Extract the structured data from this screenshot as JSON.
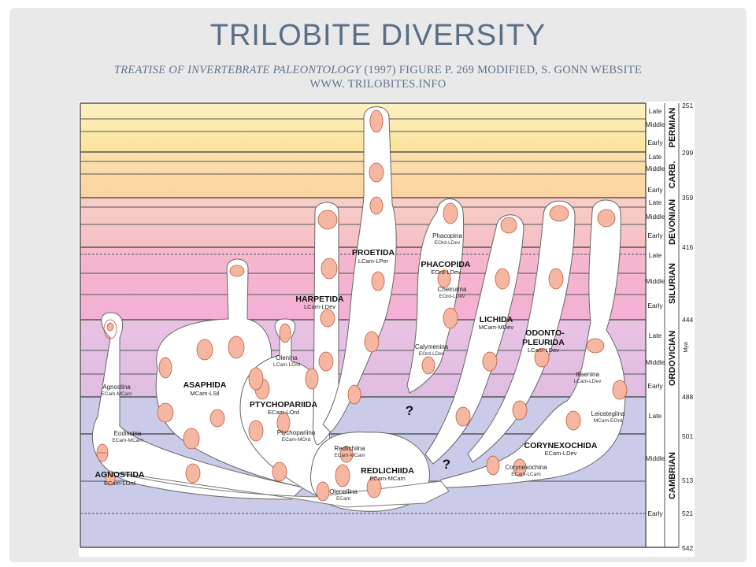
{
  "slide": {
    "title": "TRILOBITE DIVERSITY",
    "subtitle_italic": "TREATISE OF INVERTEBRATE PALEONTOLOGY",
    "subtitle_rest": " (1997) FIGURE P. 269 MODIFIED,  S. GONN WEBSITE",
    "subtitle_line2": "WWW. TRILOBITES.INFO"
  },
  "periods": [
    {
      "name": "PERMIAN",
      "color": "#fbe7a4"
    },
    {
      "name": "CARB.",
      "color": "#fbd9a2"
    },
    {
      "name": "DEVONIAN",
      "color": "#f6c6c4"
    },
    {
      "name": "SILURIAN",
      "color": "#f4b7d4"
    },
    {
      "name": "ORDOVICIAN",
      "color": "#e6bde1"
    },
    {
      "name": "CAMBRIAN",
      "color": "#c9ccea"
    }
  ],
  "epochs": {
    "permian": [
      "Late",
      "Middle",
      "Early"
    ],
    "carb": [
      "Late",
      "Middle",
      "Early"
    ],
    "devonian": [
      "Late",
      "Middle",
      "Early"
    ],
    "silurian": [
      "Late",
      "Middle",
      "Early"
    ],
    "ordovician": [
      "Late",
      "Middle",
      "Early"
    ],
    "cambrian": [
      "Late",
      "Middle",
      "Early"
    ]
  },
  "ages": [
    "251",
    "299",
    "359",
    "416",
    "444",
    "488",
    "501",
    "513",
    "521",
    "542"
  ],
  "mya_label": "Mya",
  "orders": [
    {
      "name": "AGNOSTIDA",
      "range": "ECam-LOrd"
    },
    {
      "name": "ASAPHIDA",
      "range": "MCam-LSil"
    },
    {
      "name": "PTYCHOPARIIDA",
      "range": "ECam-LOrd"
    },
    {
      "name": "REDLICHIIDA",
      "range": "ECam-MCam"
    },
    {
      "name": "HARPETIDA",
      "range": "LCam-LDev"
    },
    {
      "name": "PROETIDA",
      "range": "LCam-LPer"
    },
    {
      "name": "PHACOPIDA",
      "range": "EOrd-LDev"
    },
    {
      "name": "LICHIDA",
      "range": "MCam-MDev"
    },
    {
      "name": "ODONTO-",
      "name2": "PLEURIDA",
      "range": "LCam-LDev"
    },
    {
      "name": "CORYNEXOCHIDA",
      "range": "ECam-LDev"
    }
  ],
  "suborders": [
    {
      "name": "Agnostina",
      "range": "ECam-MCam"
    },
    {
      "name": "Eodiscina",
      "range": "ECam-MCam"
    },
    {
      "name": "Olenina",
      "range": "LCam-LOrd"
    },
    {
      "name": "Ptychopariina",
      "range": "ECam-MOrd"
    },
    {
      "name": "Redlichiina",
      "range": "ECam-MCam"
    },
    {
      "name": "Olenellina",
      "range": "ECam"
    },
    {
      "name": "Phacopina",
      "range": "EOrd-LDev"
    },
    {
      "name": "Cheirurina",
      "range": "EOrd-LDev"
    },
    {
      "name": "Calymenina",
      "range": "EOrd-LDev"
    },
    {
      "name": "Illaenina",
      "range": "LCam-LDev"
    },
    {
      "name": "Leiostegiina",
      "range": "MCam-EOrd"
    },
    {
      "name": "Corynexochina",
      "range": "ECam-LCam"
    }
  ],
  "unknown_marks": [
    "?",
    "?"
  ]
}
